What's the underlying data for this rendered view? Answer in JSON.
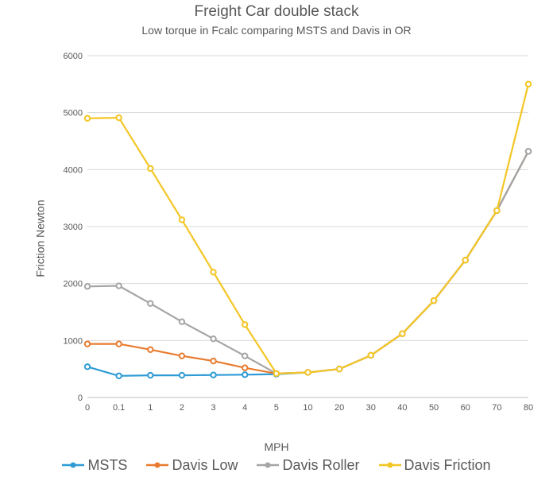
{
  "chart": {
    "type": "line",
    "title": "Freight Car double stack",
    "subtitle": "Low torque in Fcalc comparing MSTS and Davis in OR",
    "xlabel": "MPH",
    "ylabel": "Friction Newton",
    "title_fontsize": 19,
    "subtitle_fontsize": 14,
    "label_fontsize": 14,
    "tick_fontsize": 11,
    "legend_fontsize": 18,
    "background_color": "#ffffff",
    "grid_color": "#d9d9d9",
    "axis_color": "#bfbfbf",
    "text_color": "#595959",
    "categories": [
      "0",
      "0.1",
      "1",
      "2",
      "3",
      "4",
      "5",
      "10",
      "20",
      "30",
      "40",
      "50",
      "60",
      "70",
      "80"
    ],
    "yticks": [
      0,
      1000,
      2000,
      3000,
      4000,
      5000,
      6000
    ],
    "ylim": [
      0,
      6000
    ],
    "line_width": 2.2,
    "marker_radius": 3.2,
    "series": [
      {
        "name": "MSTS",
        "color": "#2e9bd6",
        "values": [
          540,
          380,
          390,
          390,
          395,
          400,
          410,
          440,
          500,
          740,
          1120,
          1700,
          2410,
          3280,
          4320
        ]
      },
      {
        "name": "Davis Low",
        "color": "#e87b2f",
        "values": [
          940,
          940,
          840,
          730,
          640,
          520,
          420,
          440,
          500,
          740,
          1120,
          1700,
          2410,
          3280,
          4320
        ]
      },
      {
        "name": "Davis Roller",
        "color": "#a5a5a5",
        "values": [
          1950,
          1960,
          1650,
          1330,
          1030,
          730,
          420,
          440,
          500,
          740,
          1120,
          1700,
          2410,
          3280,
          4320
        ]
      },
      {
        "name": "Davis Friction",
        "color": "#f4c625",
        "values": [
          4900,
          4910,
          4020,
          3120,
          2200,
          1280,
          420,
          440,
          500,
          740,
          1120,
          1700,
          2410,
          3280,
          5500
        ]
      }
    ]
  }
}
